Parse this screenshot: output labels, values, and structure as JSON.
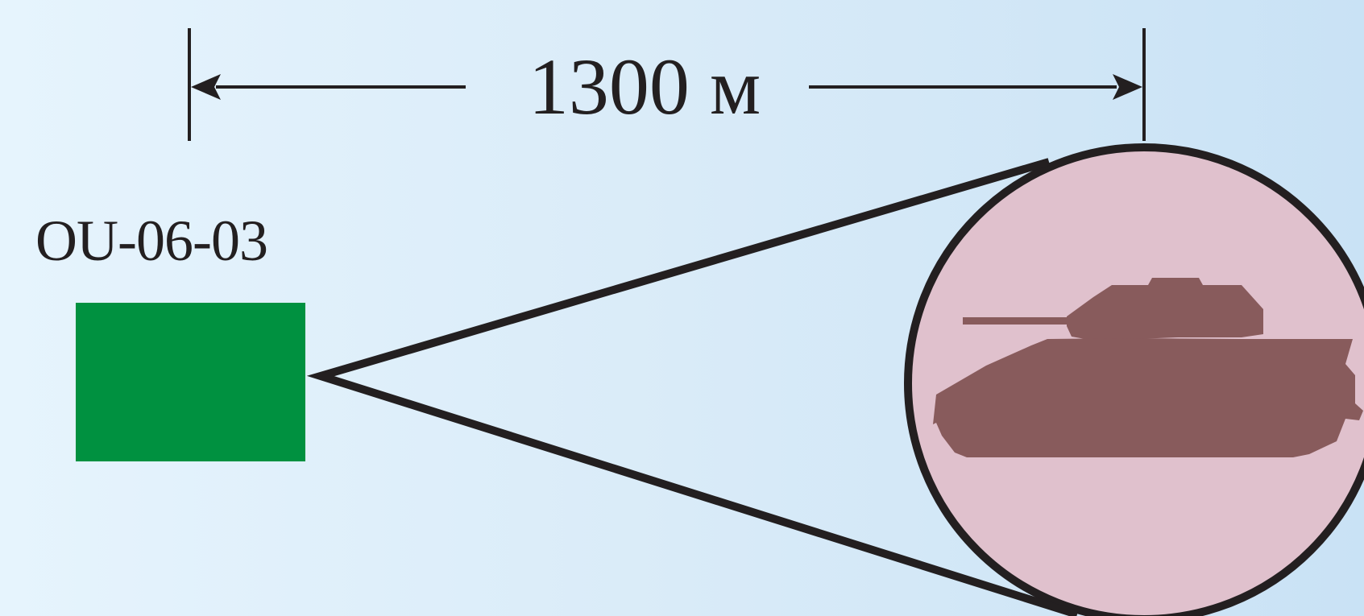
{
  "distance": {
    "label": "1300 м"
  },
  "target": {
    "code": "OU-06-03"
  },
  "colors": {
    "target_box": "#009140",
    "magnifier_fill": "#e0c1cd",
    "tank_silhouette": "#885b5c",
    "outline": "#231f20"
  },
  "icons": {
    "tank": "tank-silhouette-icon",
    "magnifier": "magnifier-circle"
  }
}
